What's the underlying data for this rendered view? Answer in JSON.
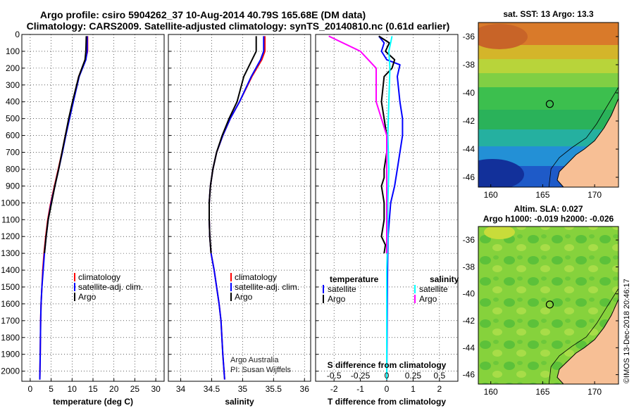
{
  "title_line1": "Argo profile: csiro 5904262_37 10-Aug-2014 40.79S 165.68E (DM data)",
  "title_line2": "Climatology: CARS2009. Satellite-adjusted climatology: synTS_20140810.nc (0.61d earlier)",
  "credit": "©IMOS 13-Dec-2018 20:46:17",
  "colors": {
    "red": "#ff0000",
    "blue": "#0000ff",
    "black": "#000000",
    "cyan": "#00ffff",
    "magenta": "#ff00ff"
  },
  "chart_data": [
    {
      "id": "temperature",
      "type": "line",
      "xlabel": "temperature (deg C)",
      "xlim": [
        -2,
        32
      ],
      "xticks": [
        0,
        5,
        10,
        15,
        20,
        25,
        30
      ],
      "ylim": [
        2060,
        0
      ],
      "yticks": [
        0,
        100,
        200,
        300,
        400,
        500,
        600,
        700,
        800,
        900,
        1000,
        1100,
        1200,
        1300,
        1400,
        1500,
        1600,
        1700,
        1800,
        1900,
        2000
      ],
      "legend": [
        "climatology",
        "satellite-adj. clim.",
        "Argo"
      ],
      "legend_position": "lower-right",
      "series": [
        {
          "name": "climatology",
          "color": "red",
          "x": [
            13.7,
            13.7,
            13.2,
            11.6,
            10.2,
            9.3,
            8.4,
            7.6,
            6.7,
            5.8,
            4.9,
            4.2,
            3.7,
            3.3,
            3.0,
            2.8,
            2.6,
            2.5,
            2.4,
            2.3
          ],
          "y": [
            10,
            100,
            150,
            250,
            400,
            500,
            600,
            700,
            800,
            900,
            1000,
            1100,
            1200,
            1300,
            1400,
            1500,
            1600,
            1700,
            1900,
            2050
          ]
        },
        {
          "name": "satellite-adj. clim.",
          "color": "blue",
          "x": [
            13.6,
            13.6,
            13.3,
            11.7,
            10.3,
            9.4,
            8.5,
            7.7,
            6.8,
            5.9,
            5.0,
            4.3,
            3.8,
            3.4,
            3.1,
            2.8,
            2.6,
            2.5,
            2.4,
            2.3
          ],
          "y": [
            10,
            100,
            150,
            250,
            400,
            500,
            600,
            700,
            800,
            900,
            1000,
            1100,
            1200,
            1300,
            1400,
            1500,
            1600,
            1700,
            1900,
            2050
          ]
        },
        {
          "name": "Argo",
          "color": "black",
          "x": [
            13.4,
            13.3,
            13.1,
            11.6,
            10.1,
            9.2,
            8.4,
            7.6,
            6.8,
            5.9,
            5.1,
            4.3,
            3.8,
            3.4
          ],
          "y": [
            10,
            100,
            150,
            250,
            400,
            500,
            600,
            700,
            800,
            900,
            1000,
            1100,
            1200,
            1300
          ]
        }
      ]
    },
    {
      "id": "salinity",
      "type": "line",
      "xlabel": "salinity",
      "xlim": [
        33.8,
        36.1
      ],
      "xticks": [
        34,
        34.5,
        35,
        35.5,
        36
      ],
      "xticklabels": [
        "34",
        "34.5",
        "35",
        "35.5",
        "36"
      ],
      "ylim": [
        2060,
        0
      ],
      "legend": [
        "climatology",
        "satellite-adj. clim.",
        "Argo"
      ],
      "legend_position": "lower-right",
      "annotation": [
        "Argo Australia",
        "PI: Susan Wijffels"
      ],
      "series": [
        {
          "name": "climatology",
          "color": "red",
          "x": [
            35.36,
            35.36,
            35.31,
            35.15,
            34.95,
            34.8,
            34.68,
            34.58,
            34.52,
            34.48,
            34.46,
            34.46,
            34.47,
            34.49,
            34.54,
            34.58,
            34.62,
            34.65,
            34.68,
            34.71
          ],
          "y": [
            10,
            100,
            150,
            250,
            400,
            500,
            600,
            700,
            800,
            900,
            1000,
            1100,
            1200,
            1300,
            1400,
            1500,
            1600,
            1700,
            1900,
            2050
          ]
        },
        {
          "name": "satellite-adj. clim.",
          "color": "blue",
          "x": [
            35.34,
            35.34,
            35.29,
            35.14,
            34.95,
            34.8,
            34.68,
            34.58,
            34.52,
            34.48,
            34.46,
            34.46,
            34.47,
            34.49,
            34.54,
            34.58,
            34.62,
            34.65,
            34.68,
            34.71
          ],
          "y": [
            10,
            100,
            150,
            250,
            400,
            500,
            600,
            700,
            800,
            900,
            1000,
            1100,
            1200,
            1300,
            1400,
            1500,
            1600,
            1700,
            1900,
            2050
          ]
        },
        {
          "name": "Argo",
          "color": "black",
          "x": [
            35.22,
            35.22,
            35.22,
            35.02,
            34.91,
            34.78,
            34.67,
            34.58,
            34.52,
            34.48,
            34.46,
            34.46,
            34.47,
            34.49
          ],
          "y": [
            10,
            50,
            100,
            250,
            400,
            500,
            600,
            700,
            800,
            900,
            1000,
            1100,
            1200,
            1300
          ]
        }
      ]
    },
    {
      "id": "differences",
      "type": "line",
      "xlabel": "T difference from climatology",
      "xlabel2": "S difference from climatology",
      "xlim": [
        -2.7,
        2.7
      ],
      "xticks": [
        -2,
        -1,
        0,
        1,
        2
      ],
      "xticklabels": [
        "-2",
        "-1",
        "0",
        "1",
        "2"
      ],
      "x2ticks": [
        -0.5,
        -0.25,
        0,
        0.25,
        0.5
      ],
      "x2ticklabels": [
        "-0.5",
        "-0.25",
        "0",
        "0.25",
        "0.5"
      ],
      "ylim": [
        2060,
        0
      ],
      "legend_titles": [
        "temperature",
        "salinity"
      ],
      "legend": [
        [
          "satellite",
          "Argo"
        ],
        [
          "satellite",
          "Argo"
        ]
      ],
      "legend_position": "lower-center",
      "series": [
        {
          "name": "temperature satellite",
          "color": "blue",
          "x": [
            -0.3,
            -0.1,
            -0.2,
            0.0,
            0.5,
            0.4,
            0.5,
            0.6,
            0.6,
            0.5,
            0.4,
            0.3,
            0.15,
            0.1,
            0.05,
            0.03,
            0.02,
            0.01,
            0.0
          ],
          "y": [
            10,
            50,
            100,
            150,
            180,
            250,
            400,
            500,
            600,
            700,
            800,
            900,
            1000,
            1100,
            1200,
            1400,
            1600,
            1800,
            2050
          ]
        },
        {
          "name": "temperature Argo",
          "color": "black",
          "x": [
            -0.3,
            0.1,
            -0.05,
            0.3,
            0.2,
            -0.1,
            -0.2,
            -0.1,
            0.0,
            0.0,
            -0.1,
            -0.1,
            -0.2,
            -0.1,
            -0.1,
            -0.2,
            -0.05,
            -0.1
          ],
          "y": [
            10,
            50,
            100,
            150,
            200,
            250,
            400,
            500,
            600,
            700,
            800,
            850,
            900,
            1000,
            1100,
            1200,
            1250,
            1300
          ]
        },
        {
          "name": "salinity satellite",
          "color": "cyan",
          "x": [
            0.05,
            0.02,
            0.03,
            0.02,
            0.01,
            0.02,
            0.01,
            0.01,
            0.0,
            0.0,
            0.0,
            0.0
          ],
          "y": [
            10,
            100,
            200,
            400,
            600,
            800,
            1000,
            1200,
            1400,
            1600,
            1800,
            2050
          ]
        },
        {
          "name": "salinity Argo",
          "color": "magenta",
          "x": [
            -0.55,
            -0.25,
            -0.1,
            -0.1,
            -0.05,
            0.0,
            0.0,
            0.0,
            0.0
          ],
          "y": [
            10,
            100,
            200,
            400,
            500,
            600,
            800,
            1000,
            1300
          ]
        }
      ]
    },
    {
      "id": "sst-map",
      "type": "heatmap",
      "title": "sat. SST: 13 Argo: 13.3",
      "xlim": [
        158.8,
        172.3
      ],
      "ylim": [
        -46.7,
        -35.0
      ],
      "xticks": [
        160,
        165,
        170
      ],
      "xticklabels": [
        "160",
        "165",
        "170"
      ],
      "yticks": [
        -36,
        -38,
        -40,
        -42,
        -44,
        -46
      ],
      "yticklabels": [
        "-36",
        "-38",
        "-40",
        "-42",
        "-44",
        "-46"
      ],
      "argo_position": {
        "lon": 165.68,
        "lat": -40.79
      },
      "bands": [
        {
          "lat": -35.0,
          "color": "#d97a2a"
        },
        {
          "lat": -36.6,
          "color": "#d4b52a"
        },
        {
          "lat": -37.6,
          "color": "#b8d43a"
        },
        {
          "lat": -38.6,
          "color": "#80cf44"
        },
        {
          "lat": -39.6,
          "color": "#3cbf4e"
        },
        {
          "lat": -41.2,
          "color": "#2ab25a"
        },
        {
          "lat": -42.6,
          "color": "#25b0a0"
        },
        {
          "lat": -43.8,
          "color": "#2390d6"
        },
        {
          "lat": -45.2,
          "color": "#1e5ac8"
        },
        {
          "lat": -46.7,
          "color": "#173da8"
        }
      ]
    },
    {
      "id": "sla-map",
      "type": "heatmap",
      "title": "Altim. SLA: 0.027",
      "subtitle": "Argo h1000: -0.019 h2000: -0.026",
      "xlim": [
        158.8,
        172.3
      ],
      "ylim": [
        -46.7,
        -35.0
      ],
      "xticks": [
        160,
        165,
        170
      ],
      "xticklabels": [
        "160",
        "165",
        "170"
      ],
      "yticks": [
        -36,
        -38,
        -40,
        -42,
        -44,
        -46
      ],
      "yticklabels": [
        "-36",
        "-38",
        "-40",
        "-42",
        "-44",
        "-46"
      ],
      "argo_position": {
        "lon": 165.68,
        "lat": -40.79
      },
      "bands": [
        {
          "lat": -35.0,
          "color": "#8fd63e"
        },
        {
          "lat": -46.7,
          "color": "#8fd63e"
        }
      ]
    }
  ]
}
